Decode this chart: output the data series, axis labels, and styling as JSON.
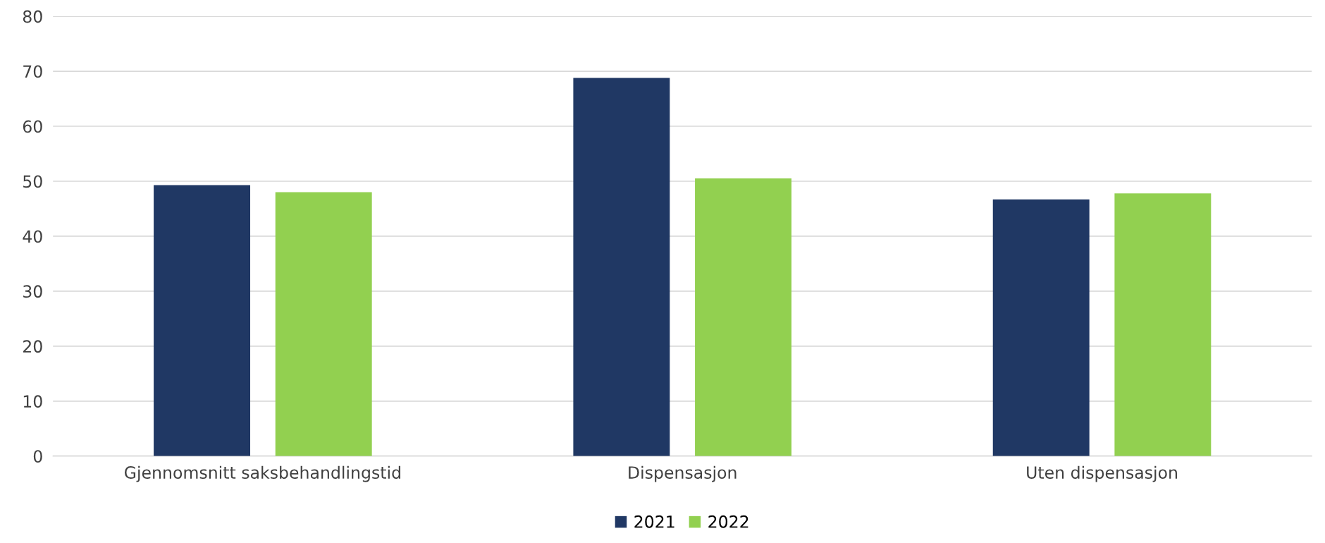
{
  "chart_data": {
    "type": "bar",
    "categories": [
      "Gjennomsnitt saksbehandlingstid",
      "Dispensasjon",
      "Uten dispensasjon"
    ],
    "series": [
      {
        "name": "2021",
        "color": "#203864",
        "values": [
          49.3,
          68.8,
          46.7
        ]
      },
      {
        "name": "2022",
        "color": "#92d050",
        "values": [
          48.0,
          50.5,
          47.8
        ]
      }
    ],
    "ylim": [
      0,
      80
    ],
    "yticks": [
      0,
      10,
      20,
      30,
      40,
      50,
      60,
      70,
      80
    ],
    "grid": "y",
    "legend": "bottom"
  }
}
